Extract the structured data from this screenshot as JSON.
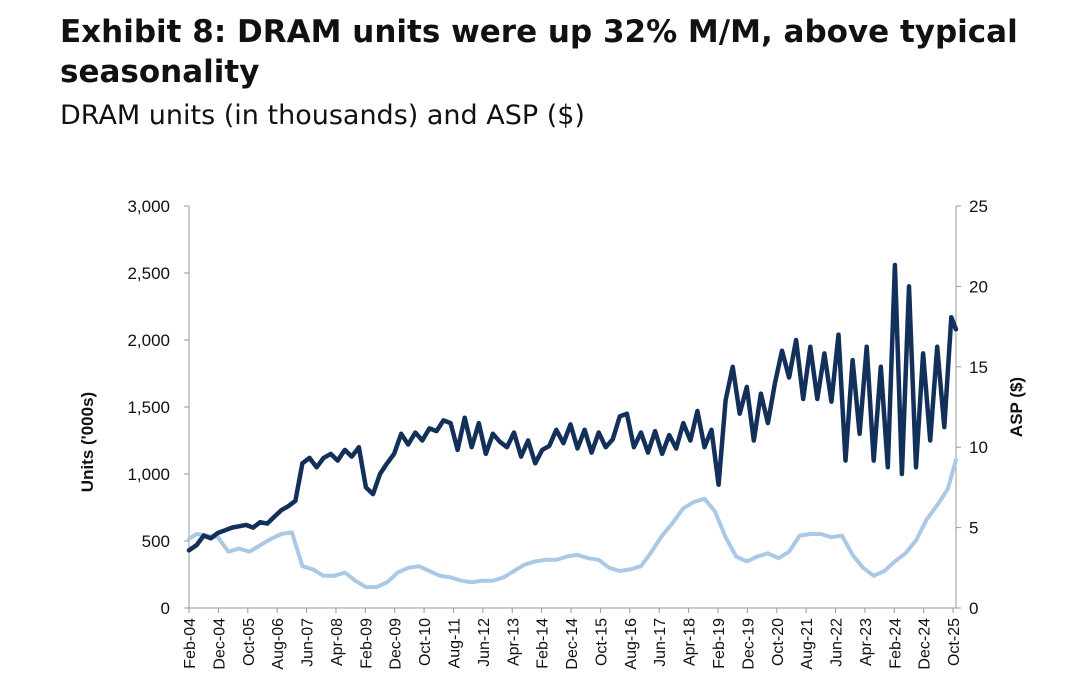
{
  "title": "Exhibit 8: DRAM units were up 32% M/M, above typical seasonality",
  "subtitle": "DRAM units (in thousands) and ASP ($)",
  "colors": {
    "units": "#12305a",
    "asp": "#a9c9e6",
    "axis": "#999999"
  },
  "chart_data": {
    "type": "line",
    "title": "Exhibit 8: DRAM units were up 32% M/M, above typical seasonality",
    "subtitle": "DRAM units (in thousands) and ASP ($)",
    "ylabel": "Units ('000s)",
    "ylabel_right": "ASP ($)",
    "ylim": [
      0,
      3000
    ],
    "ylim_right": [
      0,
      25
    ],
    "yticks": [
      "0",
      "500",
      "1,000",
      "1,500",
      "2,000",
      "2,500",
      "3,000"
    ],
    "yticks_right": [
      "0",
      "5",
      "10",
      "15",
      "20",
      "25"
    ],
    "x_range": [
      2004.083,
      2025.833
    ],
    "xticks": [
      {
        "label": "Feb-04",
        "t": 2004.083
      },
      {
        "label": "Dec-04",
        "t": 2004.917
      },
      {
        "label": "Oct-05",
        "t": 2005.75
      },
      {
        "label": "Aug-06",
        "t": 2006.583
      },
      {
        "label": "Jun-07",
        "t": 2007.417
      },
      {
        "label": "Apr-08",
        "t": 2008.25
      },
      {
        "label": "Feb-09",
        "t": 2009.083
      },
      {
        "label": "Dec-09",
        "t": 2009.917
      },
      {
        "label": "Oct-10",
        "t": 2010.75
      },
      {
        "label": "Aug-11",
        "t": 2011.583
      },
      {
        "label": "Jun-12",
        "t": 2012.417
      },
      {
        "label": "Apr-13",
        "t": 2013.25
      },
      {
        "label": "Feb-14",
        "t": 2014.083
      },
      {
        "label": "Dec-14",
        "t": 2014.917
      },
      {
        "label": "Oct-15",
        "t": 2015.75
      },
      {
        "label": "Aug-16",
        "t": 2016.583
      },
      {
        "label": "Jun-17",
        "t": 2017.417
      },
      {
        "label": "Apr-18",
        "t": 2018.25
      },
      {
        "label": "Feb-19",
        "t": 2019.083
      },
      {
        "label": "Dec-19",
        "t": 2019.917
      },
      {
        "label": "Oct-20",
        "t": 2020.75
      },
      {
        "label": "Aug-21",
        "t": 2021.583
      },
      {
        "label": "Jun-22",
        "t": 2022.417
      },
      {
        "label": "Apr-23",
        "t": 2023.25
      },
      {
        "label": "Feb-24",
        "t": 2024.083
      },
      {
        "label": "Dec-24",
        "t": 2024.917
      },
      {
        "label": "Oct-25",
        "t": 2025.75
      }
    ],
    "series": [
      {
        "name": "DRAM units ('000s)",
        "axis": "left",
        "points": [
          [
            2004.08,
            430
          ],
          [
            2004.3,
            470
          ],
          [
            2004.5,
            540
          ],
          [
            2004.7,
            520
          ],
          [
            2004.9,
            560
          ],
          [
            2005.1,
            580
          ],
          [
            2005.3,
            600
          ],
          [
            2005.5,
            610
          ],
          [
            2005.7,
            620
          ],
          [
            2005.9,
            600
          ],
          [
            2006.1,
            640
          ],
          [
            2006.3,
            630
          ],
          [
            2006.5,
            680
          ],
          [
            2006.7,
            730
          ],
          [
            2006.9,
            760
          ],
          [
            2007.1,
            800
          ],
          [
            2007.3,
            1080
          ],
          [
            2007.5,
            1120
          ],
          [
            2007.7,
            1050
          ],
          [
            2007.9,
            1120
          ],
          [
            2008.1,
            1150
          ],
          [
            2008.3,
            1100
          ],
          [
            2008.5,
            1180
          ],
          [
            2008.7,
            1130
          ],
          [
            2008.9,
            1200
          ],
          [
            2009.1,
            900
          ],
          [
            2009.3,
            850
          ],
          [
            2009.5,
            1000
          ],
          [
            2009.7,
            1080
          ],
          [
            2009.9,
            1150
          ],
          [
            2010.1,
            1300
          ],
          [
            2010.3,
            1220
          ],
          [
            2010.5,
            1310
          ],
          [
            2010.7,
            1250
          ],
          [
            2010.9,
            1340
          ],
          [
            2011.1,
            1320
          ],
          [
            2011.3,
            1400
          ],
          [
            2011.5,
            1380
          ],
          [
            2011.7,
            1180
          ],
          [
            2011.9,
            1420
          ],
          [
            2012.1,
            1200
          ],
          [
            2012.3,
            1380
          ],
          [
            2012.5,
            1150
          ],
          [
            2012.7,
            1300
          ],
          [
            2012.9,
            1240
          ],
          [
            2013.1,
            1200
          ],
          [
            2013.3,
            1310
          ],
          [
            2013.5,
            1130
          ],
          [
            2013.7,
            1250
          ],
          [
            2013.9,
            1080
          ],
          [
            2014.1,
            1180
          ],
          [
            2014.3,
            1210
          ],
          [
            2014.5,
            1330
          ],
          [
            2014.7,
            1230
          ],
          [
            2014.9,
            1370
          ],
          [
            2015.1,
            1190
          ],
          [
            2015.3,
            1330
          ],
          [
            2015.5,
            1160
          ],
          [
            2015.7,
            1310
          ],
          [
            2015.9,
            1200
          ],
          [
            2016.1,
            1260
          ],
          [
            2016.3,
            1430
          ],
          [
            2016.5,
            1450
          ],
          [
            2016.7,
            1200
          ],
          [
            2016.9,
            1310
          ],
          [
            2017.1,
            1160
          ],
          [
            2017.3,
            1320
          ],
          [
            2017.5,
            1150
          ],
          [
            2017.7,
            1290
          ],
          [
            2017.9,
            1190
          ],
          [
            2018.1,
            1380
          ],
          [
            2018.3,
            1250
          ],
          [
            2018.5,
            1470
          ],
          [
            2018.7,
            1200
          ],
          [
            2018.9,
            1330
          ],
          [
            2019.1,
            920
          ],
          [
            2019.3,
            1550
          ],
          [
            2019.5,
            1800
          ],
          [
            2019.7,
            1450
          ],
          [
            2019.9,
            1650
          ],
          [
            2020.1,
            1250
          ],
          [
            2020.3,
            1600
          ],
          [
            2020.5,
            1380
          ],
          [
            2020.7,
            1680
          ],
          [
            2020.9,
            1920
          ],
          [
            2021.1,
            1720
          ],
          [
            2021.3,
            2000
          ],
          [
            2021.5,
            1560
          ],
          [
            2021.7,
            1950
          ],
          [
            2021.9,
            1560
          ],
          [
            2022.1,
            1900
          ],
          [
            2022.3,
            1540
          ],
          [
            2022.5,
            2040
          ],
          [
            2022.7,
            1100
          ],
          [
            2022.9,
            1850
          ],
          [
            2023.1,
            1300
          ],
          [
            2023.3,
            1950
          ],
          [
            2023.5,
            1100
          ],
          [
            2023.7,
            1800
          ],
          [
            2023.9,
            1050
          ],
          [
            2024.1,
            2560
          ],
          [
            2024.3,
            1000
          ],
          [
            2024.5,
            2400
          ],
          [
            2024.7,
            1050
          ],
          [
            2024.9,
            1900
          ],
          [
            2025.1,
            1250
          ],
          [
            2025.3,
            1950
          ],
          [
            2025.5,
            1350
          ],
          [
            2025.7,
            2170
          ],
          [
            2025.83,
            2080
          ]
        ]
      },
      {
        "name": "ASP ($)",
        "axis": "right",
        "points": [
          [
            2004.08,
            4.3
          ],
          [
            2004.3,
            4.6
          ],
          [
            2004.6,
            4.5
          ],
          [
            2004.9,
            4.4
          ],
          [
            2005.2,
            3.5
          ],
          [
            2005.5,
            3.7
          ],
          [
            2005.8,
            3.5
          ],
          [
            2006.1,
            3.9
          ],
          [
            2006.4,
            4.3
          ],
          [
            2006.7,
            4.6
          ],
          [
            2007.0,
            4.7
          ],
          [
            2007.3,
            2.6
          ],
          [
            2007.6,
            2.4
          ],
          [
            2007.9,
            2.0
          ],
          [
            2008.2,
            2.0
          ],
          [
            2008.5,
            2.2
          ],
          [
            2008.8,
            1.7
          ],
          [
            2009.1,
            1.3
          ],
          [
            2009.4,
            1.3
          ],
          [
            2009.7,
            1.6
          ],
          [
            2010.0,
            2.2
          ],
          [
            2010.3,
            2.5
          ],
          [
            2010.6,
            2.6
          ],
          [
            2010.9,
            2.3
          ],
          [
            2011.2,
            2.0
          ],
          [
            2011.5,
            1.9
          ],
          [
            2011.8,
            1.7
          ],
          [
            2012.1,
            1.6
          ],
          [
            2012.4,
            1.7
          ],
          [
            2012.7,
            1.7
          ],
          [
            2013.0,
            1.9
          ],
          [
            2013.3,
            2.3
          ],
          [
            2013.6,
            2.7
          ],
          [
            2013.9,
            2.9
          ],
          [
            2014.2,
            3.0
          ],
          [
            2014.5,
            3.0
          ],
          [
            2014.8,
            3.2
          ],
          [
            2015.1,
            3.3
          ],
          [
            2015.4,
            3.1
          ],
          [
            2015.7,
            3.0
          ],
          [
            2016.0,
            2.5
          ],
          [
            2016.3,
            2.3
          ],
          [
            2016.6,
            2.4
          ],
          [
            2016.9,
            2.6
          ],
          [
            2017.2,
            3.5
          ],
          [
            2017.5,
            4.5
          ],
          [
            2017.8,
            5.3
          ],
          [
            2018.1,
            6.2
          ],
          [
            2018.4,
            6.6
          ],
          [
            2018.7,
            6.8
          ],
          [
            2019.0,
            6.0
          ],
          [
            2019.3,
            4.4
          ],
          [
            2019.6,
            3.2
          ],
          [
            2019.9,
            2.9
          ],
          [
            2020.2,
            3.2
          ],
          [
            2020.5,
            3.4
          ],
          [
            2020.8,
            3.1
          ],
          [
            2021.1,
            3.5
          ],
          [
            2021.4,
            4.5
          ],
          [
            2021.7,
            4.6
          ],
          [
            2022.0,
            4.6
          ],
          [
            2022.3,
            4.4
          ],
          [
            2022.6,
            4.5
          ],
          [
            2022.9,
            3.3
          ],
          [
            2023.2,
            2.5
          ],
          [
            2023.5,
            2.0
          ],
          [
            2023.8,
            2.3
          ],
          [
            2024.1,
            2.9
          ],
          [
            2024.4,
            3.4
          ],
          [
            2024.7,
            4.2
          ],
          [
            2025.0,
            5.5
          ],
          [
            2025.3,
            6.4
          ],
          [
            2025.6,
            7.4
          ],
          [
            2025.83,
            9.2
          ]
        ]
      }
    ]
  }
}
